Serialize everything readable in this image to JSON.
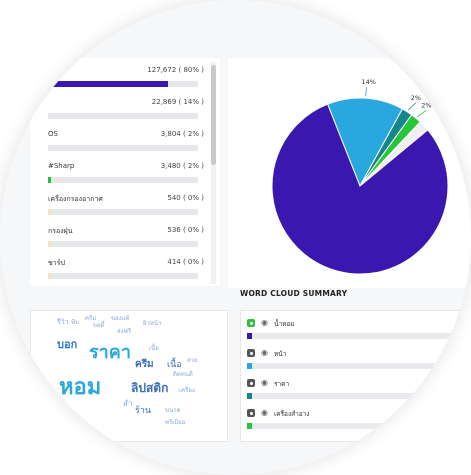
{
  "list": {
    "items": [
      {
        "label": "",
        "value": "127,672 ( 80% )",
        "fill": 0.8,
        "color": "#3a18b0"
      },
      {
        "label": "",
        "value": "22,869 ( 14% )",
        "fill": 0.14,
        "color": "#e6e7ea"
      },
      {
        "label": "OS",
        "value": "3,804 ( 2% )",
        "fill": 0.02,
        "color": "#e6e7ea"
      },
      {
        "label": "#Sharp",
        "value": "3,480 ( 2% )",
        "fill": 0.02,
        "color": "#2bbf3c"
      },
      {
        "label": "เครื่องกรองอากาศ",
        "value": "540 ( 0% )",
        "fill": 0.01,
        "color": "#f0e7b0"
      },
      {
        "label": "กรองฝุ่น",
        "value": "536 ( 0% )",
        "fill": 0.01,
        "color": "#f0e7b0"
      },
      {
        "label": "ชาร์ป",
        "value": "414 ( 0% )",
        "fill": 0.01,
        "color": "#f0e7b0"
      }
    ]
  },
  "chart_data": {
    "type": "pie",
    "slices": [
      {
        "label": "",
        "value": 80,
        "color": "#3a18b0"
      },
      {
        "label": "14%",
        "value": 14,
        "color": "#29a8e0"
      },
      {
        "label": "2%",
        "value": 2,
        "color": "#15868c"
      },
      {
        "label": "2%",
        "value": 2,
        "color": "#28c43a"
      },
      {
        "label": "",
        "value": 2,
        "color": "#f0f0f0"
      }
    ]
  },
  "summary": {
    "title": "WORD CLOUD SUMMARY",
    "items": [
      {
        "label": "น้ำหอม",
        "color": "#3a18b0",
        "checked": true
      },
      {
        "label": "หน้า",
        "color": "#29a8e0",
        "checked": false
      },
      {
        "label": "ราคา",
        "color": "#15868c",
        "checked": false
      },
      {
        "label": "เครื่องสำอาง",
        "color": "#28c43a",
        "checked": false
      }
    ]
  },
  "cloud": {
    "words": [
      {
        "text": "ครีม",
        "color": "#8aa7d8",
        "size": 6
      },
      {
        "text": "ของแท้",
        "color": "#8aa7d8",
        "size": 6
      },
      {
        "text": "รีวิว",
        "color": "#8aa7d8",
        "size": 7
      },
      {
        "text": "ทีม",
        "color": "#8aa7d8",
        "size": 6
      },
      {
        "text": "บอดี้",
        "color": "#8aa7d8",
        "size": 6
      },
      {
        "text": "ผิวหน้า",
        "color": "#8aa7d8",
        "size": 6
      },
      {
        "text": "ส่งฟรี",
        "color": "#8aa7d8",
        "size": 6
      },
      {
        "text": "บอก",
        "color": "#2b77c9",
        "size": 11
      },
      {
        "text": "ราคา",
        "color": "#29a8e0",
        "size": 18
      },
      {
        "text": "เนื้อ",
        "color": "#8aa7d8",
        "size": 6
      },
      {
        "text": "ครีม",
        "color": "#3a6fb5",
        "size": 10
      },
      {
        "text": "เนื้อ",
        "color": "#3a6fb5",
        "size": 9
      },
      {
        "text": "สวย",
        "color": "#8aa7d8",
        "size": 6
      },
      {
        "text": "หอม",
        "color": "#29a8e0",
        "size": 22
      },
      {
        "text": "ติดทนดี",
        "color": "#8aa7d8",
        "size": 6
      },
      {
        "text": "ลิปสติก",
        "color": "#3a6fb5",
        "size": 12
      },
      {
        "text": "เครื่อง",
        "color": "#8aa7d8",
        "size": 6
      },
      {
        "text": "สำ",
        "color": "#8aa7d8",
        "size": 8
      },
      {
        "text": "ร้าน",
        "color": "#3a6fb5",
        "size": 9
      },
      {
        "text": "ขนาด",
        "color": "#8aa7d8",
        "size": 6
      },
      {
        "text": "พรีเมียม",
        "color": "#8aa7d8",
        "size": 6
      }
    ]
  }
}
